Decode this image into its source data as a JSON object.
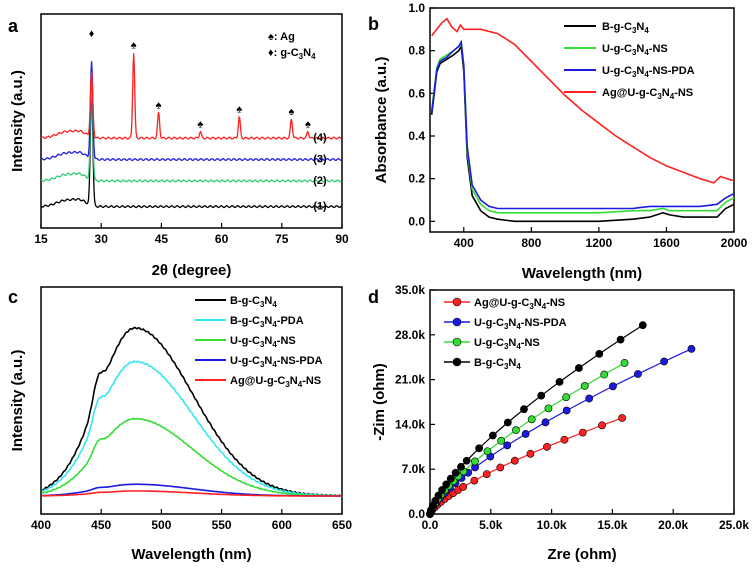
{
  "chart_data": [
    {
      "panel": "a",
      "type": "line",
      "xlabel": "2θ (degree)",
      "ylabel": "Intensity (a.u.)",
      "xlim": [
        15,
        90
      ],
      "xticks": [
        "15",
        "30",
        "45",
        "60",
        "75",
        "90"
      ],
      "legend": [
        {
          "symbol": "♠",
          "text": ": Ag"
        },
        {
          "symbol": "♦",
          "text": ": g-C3N4",
          "sub": "3",
          "sub2": "4"
        }
      ],
      "ag_peaks": [
        38.1,
        44.3,
        54.7,
        64.4,
        77.4,
        81.5
      ],
      "gcn_peak": 27.6,
      "series": [
        {
          "label": "(1)",
          "color": "#000000",
          "baseline": 0.1,
          "main_peak": 0.55,
          "ag": false
        },
        {
          "label": "(2)",
          "color": "#2ecc71",
          "baseline": 0.22,
          "main_peak": 0.45,
          "ag": false
        },
        {
          "label": "(3)",
          "color": "#1f1fe0",
          "baseline": 0.32,
          "main_peak": 0.45,
          "ag": false
        },
        {
          "label": "(4)",
          "color": "#ff2020",
          "baseline": 0.42,
          "main_peak": 0.3,
          "ag": true
        }
      ]
    },
    {
      "panel": "b",
      "type": "line",
      "xlabel": "Wavelength (nm)",
      "ylabel": "Absorbance (a.u.)",
      "xlim": [
        200,
        2000
      ],
      "ylim": [
        -0.05,
        1.0
      ],
      "xticks": [
        "400",
        "800",
        "1200",
        "1600",
        "2000"
      ],
      "yticks": [
        "0.0",
        "0.2",
        "0.4",
        "0.6",
        "0.8",
        "1.0"
      ],
      "series": [
        {
          "name": "B-g-C3N4",
          "color": "#000000",
          "x": [
            210,
            240,
            260,
            300,
            340,
            370,
            385,
            400,
            420,
            450,
            500,
            550,
            600,
            700,
            800,
            1000,
            1200,
            1400,
            1500,
            1580,
            1620,
            1700,
            1800,
            1900,
            1950,
            2000
          ],
          "y": [
            0.5,
            0.7,
            0.74,
            0.76,
            0.78,
            0.8,
            0.82,
            0.7,
            0.3,
            0.12,
            0.05,
            0.02,
            0.01,
            0.0,
            0.0,
            0.0,
            0.0,
            0.01,
            0.02,
            0.04,
            0.03,
            0.02,
            0.02,
            0.02,
            0.06,
            0.08
          ]
        },
        {
          "name": "U-g-C3N4-NS",
          "color": "#33dd33",
          "x": [
            210,
            240,
            260,
            300,
            340,
            370,
            385,
            400,
            420,
            450,
            500,
            550,
            600,
            700,
            800,
            1000,
            1200,
            1400,
            1500,
            1580,
            1620,
            1700,
            1800,
            1900,
            1950,
            2000
          ],
          "y": [
            0.52,
            0.72,
            0.76,
            0.78,
            0.8,
            0.82,
            0.84,
            0.72,
            0.33,
            0.15,
            0.08,
            0.05,
            0.04,
            0.04,
            0.04,
            0.04,
            0.04,
            0.05,
            0.05,
            0.06,
            0.05,
            0.05,
            0.05,
            0.05,
            0.09,
            0.11
          ]
        },
        {
          "name": "U-g-C3N4-NS-PDA",
          "color": "#1a1ae0",
          "x": [
            210,
            240,
            260,
            300,
            340,
            370,
            385,
            400,
            420,
            450,
            500,
            550,
            600,
            700,
            800,
            1000,
            1200,
            1400,
            1500,
            1580,
            1620,
            1700,
            1800,
            1900,
            1950,
            2000
          ],
          "y": [
            0.51,
            0.71,
            0.75,
            0.77,
            0.8,
            0.82,
            0.84,
            0.73,
            0.35,
            0.17,
            0.1,
            0.07,
            0.06,
            0.06,
            0.06,
            0.06,
            0.06,
            0.06,
            0.07,
            0.07,
            0.07,
            0.07,
            0.07,
            0.08,
            0.11,
            0.13
          ]
        },
        {
          "name": "Ag@U-g-C3N4-NS",
          "color": "#ff2020",
          "x": [
            210,
            240,
            270,
            300,
            330,
            360,
            380,
            400,
            440,
            500,
            600,
            700,
            800,
            900,
            1000,
            1100,
            1200,
            1300,
            1400,
            1500,
            1600,
            1700,
            1800,
            1880,
            1920,
            1960,
            2000
          ],
          "y": [
            0.87,
            0.9,
            0.93,
            0.95,
            0.91,
            0.89,
            0.92,
            0.9,
            0.9,
            0.9,
            0.88,
            0.83,
            0.75,
            0.67,
            0.59,
            0.52,
            0.46,
            0.4,
            0.35,
            0.3,
            0.26,
            0.23,
            0.2,
            0.18,
            0.21,
            0.2,
            0.19
          ]
        }
      ],
      "legend": [
        {
          "base": "B-g-C",
          "sub1": "3",
          "mid": "N",
          "sub2": "4",
          "tail": ""
        },
        {
          "base": "U-g-C",
          "sub1": "3",
          "mid": "N",
          "sub2": "4",
          "tail": "-NS"
        },
        {
          "base": "U-g-C",
          "sub1": "3",
          "mid": "N",
          "sub2": "4",
          "tail": "-NS-PDA"
        },
        {
          "base": "Ag@U-g-C",
          "sub1": "3",
          "mid": "N",
          "sub2": "4",
          "tail": "-NS"
        }
      ]
    },
    {
      "panel": "c",
      "type": "line",
      "xlabel": "Wavelength (nm)",
      "ylabel": "Intensity (a.u.)",
      "xlim": [
        400,
        650
      ],
      "xticks": [
        "400",
        "450",
        "500",
        "550",
        "600",
        "650"
      ],
      "series": [
        {
          "name": "B-g-C3N4",
          "color": "#000000",
          "peak": 1.0
        },
        {
          "name": "B-g-C3N4-PDA",
          "color": "#33e6f0",
          "peak": 0.8
        },
        {
          "name": "U-g-C3N4-NS",
          "color": "#33dd33",
          "peak": 0.46
        },
        {
          "name": "U-g-C3N4-NS-PDA",
          "color": "#1a1ae0",
          "peak": 0.07
        },
        {
          "name": "Ag@U-g-C3N4-NS",
          "color": "#ff2020",
          "peak": 0.03
        }
      ],
      "legend": [
        {
          "base": "B-g-C",
          "sub1": "3",
          "mid": "N",
          "sub2": "4",
          "tail": ""
        },
        {
          "base": "B-g-C",
          "sub1": "3",
          "mid": "N",
          "sub2": "4",
          "tail": "-PDA"
        },
        {
          "base": "U-g-C",
          "sub1": "3",
          "mid": "N",
          "sub2": "4",
          "tail": "-NS"
        },
        {
          "base": "U-g-C",
          "sub1": "3",
          "mid": "N",
          "sub2": "4",
          "tail": "-NS-PDA"
        },
        {
          "base": "Ag@U-g-C",
          "sub1": "3",
          "mid": "N",
          "sub2": "4",
          "tail": "-NS"
        }
      ]
    },
    {
      "panel": "d",
      "type": "scatter",
      "xlabel": "Zre (ohm)",
      "ylabel": "-Zim (ohm)",
      "xlim": [
        0,
        25000
      ],
      "ylim": [
        0,
        35000
      ],
      "xticks": [
        "0.0",
        "5.0k",
        "10.0k",
        "15.0k",
        "20.0k",
        "25.0k"
      ],
      "yticks": [
        "0.0",
        "7.0k",
        "14.0k",
        "21.0k",
        "28.0k",
        "35.0k"
      ],
      "series": [
        {
          "name": "Ag@U-g-C3N4-NS",
          "color": "#ff2020",
          "xmax": 15800,
          "ymax": 15000
        },
        {
          "name": "U-g-C3N4-NS-PDA",
          "color": "#1a1ae0",
          "xmax": 21500,
          "ymax": 25800
        },
        {
          "name": "U-g-C3N4-NS",
          "color": "#33dd33",
          "xmax": 16000,
          "ymax": 23600
        },
        {
          "name": "B-g-C3N4",
          "color": "#000000",
          "xmax": 17500,
          "ymax": 29500
        }
      ],
      "legend": [
        {
          "base": "Ag@U-g-C",
          "sub1": "3",
          "mid": "N",
          "sub2": "4",
          "tail": "-NS"
        },
        {
          "base": "U-g-C",
          "sub1": "3",
          "mid": "N",
          "sub2": "4",
          "tail": "-NS-PDA"
        },
        {
          "base": "U-g-C",
          "sub1": "3",
          "mid": "N",
          "sub2": "4",
          "tail": "-NS"
        },
        {
          "base": "B-g-C",
          "sub1": "3",
          "mid": "N",
          "sub2": "4",
          "tail": ""
        }
      ]
    }
  ],
  "panel_labels": [
    "a",
    "b",
    "c",
    "d"
  ]
}
